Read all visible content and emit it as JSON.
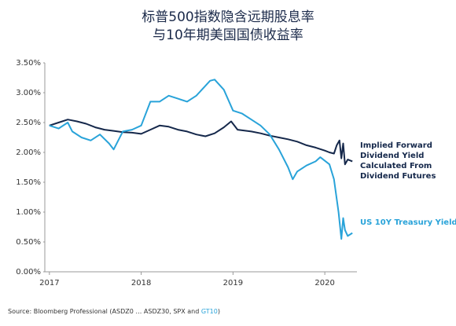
{
  "chart_data": {
    "type": "line",
    "title": [
      "标普500指数隐含远期股息率",
      "与10年期美国国债收益率"
    ],
    "source": [
      "Source:  Bloomberg Professional (ASDZ0 … ASDZ30, SPX and ",
      "GT10",
      ")"
    ],
    "xlim": [
      2016.95,
      2020.35
    ],
    "xticks": [
      2017,
      2018,
      2019,
      2020
    ],
    "ylim": [
      0,
      3.5
    ],
    "yticks": [
      {
        "value": 0,
        "label": "0.00%"
      },
      {
        "value": 0.5,
        "label": "0.50%"
      },
      {
        "value": 1,
        "label": "1.00%"
      },
      {
        "value": 1.5,
        "label": "1.50%"
      },
      {
        "value": 2,
        "label": "2.00%"
      },
      {
        "value": 2.5,
        "label": "2.50%"
      },
      {
        "value": 3,
        "label": "3.00%"
      },
      {
        "value": 3.5,
        "label": "3.50%"
      }
    ],
    "series": [
      {
        "name": "Implied Forward Dividend Yield Calculated From Dividend Futures",
        "color": "#15284b",
        "x": [
          2017.0,
          2017.1,
          2017.2,
          2017.3,
          2017.4,
          2017.5,
          2017.6,
          2017.7,
          2017.8,
          2017.9,
          2018.0,
          2018.1,
          2018.2,
          2018.3,
          2018.4,
          2018.5,
          2018.6,
          2018.7,
          2018.8,
          2018.9,
          2018.98,
          2019.05,
          2019.2,
          2019.3,
          2019.4,
          2019.5,
          2019.6,
          2019.7,
          2019.8,
          2019.9,
          2020.0,
          2020.05,
          2020.1,
          2020.13,
          2020.16,
          2020.18,
          2020.2,
          2020.22,
          2020.25,
          2020.3
        ],
        "values": [
          2.45,
          2.5,
          2.55,
          2.52,
          2.48,
          2.42,
          2.38,
          2.36,
          2.34,
          2.33,
          2.31,
          2.38,
          2.45,
          2.43,
          2.38,
          2.35,
          2.3,
          2.27,
          2.32,
          2.42,
          2.52,
          2.38,
          2.35,
          2.32,
          2.28,
          2.25,
          2.22,
          2.18,
          2.12,
          2.08,
          2.03,
          2.0,
          1.98,
          2.12,
          2.2,
          1.9,
          2.15,
          1.8,
          1.88,
          1.85
        ]
      },
      {
        "name": "US 10Y Treasury Yield",
        "color": "#29a3d9",
        "x": [
          2017.0,
          2017.1,
          2017.2,
          2017.25,
          2017.35,
          2017.45,
          2017.55,
          2017.65,
          2017.7,
          2017.8,
          2017.9,
          2018.0,
          2018.1,
          2018.2,
          2018.3,
          2018.4,
          2018.5,
          2018.6,
          2018.75,
          2018.8,
          2018.9,
          2019.0,
          2019.1,
          2019.2,
          2019.3,
          2019.4,
          2019.5,
          2019.6,
          2019.65,
          2019.7,
          2019.8,
          2019.9,
          2019.95,
          2020.05,
          2020.1,
          2020.15,
          2020.18,
          2020.2,
          2020.22,
          2020.25,
          2020.3
        ],
        "values": [
          2.45,
          2.4,
          2.5,
          2.35,
          2.25,
          2.2,
          2.3,
          2.15,
          2.05,
          2.35,
          2.38,
          2.45,
          2.85,
          2.85,
          2.95,
          2.9,
          2.85,
          2.95,
          3.2,
          3.22,
          3.05,
          2.7,
          2.65,
          2.55,
          2.45,
          2.3,
          2.05,
          1.75,
          1.55,
          1.68,
          1.78,
          1.85,
          1.92,
          1.8,
          1.55,
          1.0,
          0.55,
          0.9,
          0.7,
          0.6,
          0.65
        ]
      }
    ]
  }
}
